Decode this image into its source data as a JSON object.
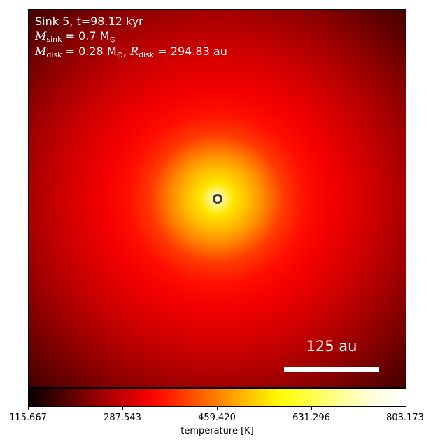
{
  "annotation": {
    "line1": "Sink 5, t=98.12 kyr",
    "m_sink_symbol": "M",
    "m_sink_sub": "sink",
    "m_sink_value": " = 0.7 M",
    "m_sink_unit_sub": "⊙",
    "m_disk_symbol": "M",
    "m_disk_sub": "disk",
    "m_disk_value": " = 0.28 M",
    "m_disk_unit_sub": "⊙",
    "separator": ", ",
    "r_disk_symbol": "R",
    "r_disk_sub": "disk",
    "r_disk_value": " = 294.83 au"
  },
  "scale_bar": {
    "label": "125 au"
  },
  "colorbar": {
    "label": "temperature [K]",
    "ticks": [
      "115.667",
      "287.543",
      "459.420",
      "631.296",
      "803.173"
    ],
    "colormap": "hot"
  }
}
